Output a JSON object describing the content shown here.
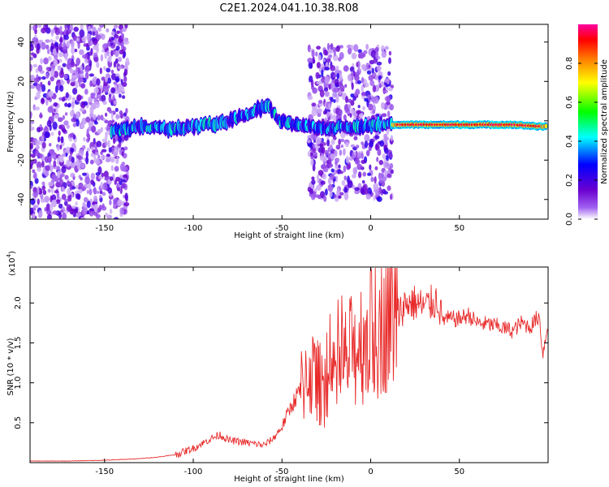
{
  "title": "C2E1.2024.041.10.38.R08",
  "colorbar": {
    "label": "Normalized spectral amplitude",
    "ticks": [
      "0.0",
      "0.2",
      "0.4",
      "0.6",
      "0.8"
    ],
    "range": [
      0,
      1
    ],
    "colors": [
      "#ffffff",
      "#6a00d0",
      "#0000ff",
      "#00ffff",
      "#00ff00",
      "#ffff00",
      "#ff7f00",
      "#ff0000",
      "#ff00a0"
    ]
  },
  "chart_data": [
    {
      "type": "heatmap",
      "xlabel": "Height of straight line (km)",
      "ylabel": "Frequency (Hz)",
      "xlim": [
        -192,
        100
      ],
      "ylim": [
        -50,
        49
      ],
      "xticks": [
        -150,
        -100,
        -50,
        0,
        50
      ],
      "yticks": [
        -40,
        -20,
        0,
        20,
        40
      ],
      "grid": false,
      "ridge": {
        "x": [
          -145,
          -130,
          -115,
          -100,
          -85,
          -70,
          -58,
          -52,
          -45,
          -35,
          -25,
          -15,
          -5,
          5,
          12,
          20,
          40,
          60,
          80,
          98
        ],
        "y": [
          -5,
          -3,
          -4,
          -3,
          -1,
          3,
          8,
          0,
          -1,
          -3,
          -4,
          -3,
          -3,
          -2,
          -2,
          -2,
          -2,
          -2,
          -2,
          -3
        ]
      },
      "noise_regions": [
        {
          "x": [
            -192,
            -137
          ],
          "y": [
            -50,
            49
          ]
        },
        {
          "x": [
            -35,
            12
          ],
          "y": [
            -40,
            38
          ]
        }
      ]
    },
    {
      "type": "line",
      "xlabel": "Height of straight line (km)",
      "ylabel": "SNR (10 * v/v)",
      "yscale_note": "(x10",
      "yscale_exp": "4",
      "xlim": [
        -192,
        100
      ],
      "ylim": [
        0,
        2.45
      ],
      "xticks": [
        -150,
        -100,
        -50,
        0,
        50
      ],
      "yticks": [
        0.5,
        1.0,
        1.5,
        2.0
      ],
      "grid": false,
      "color": "#e82a2a",
      "series": [
        {
          "x": [
            -192,
            -170,
            -150,
            -130,
            -120,
            -110,
            -100,
            -90,
            -85,
            -80,
            -70,
            -60,
            -55,
            -50,
            -45,
            -40,
            -35,
            -30,
            -25,
            -20,
            -15,
            -10,
            -5,
            0,
            5,
            10,
            15,
            20,
            25,
            30,
            35,
            38,
            40,
            50,
            55,
            60,
            70,
            80,
            85,
            90,
            95,
            97,
            100
          ],
          "y": [
            0.02,
            0.02,
            0.03,
            0.05,
            0.07,
            0.1,
            0.18,
            0.3,
            0.35,
            0.28,
            0.25,
            0.22,
            0.3,
            0.45,
            0.7,
            0.9,
            1.2,
            1.0,
            0.95,
            1.0,
            1.25,
            1.4,
            1.55,
            1.6,
            1.7,
            1.95,
            1.85,
            2.0,
            2.0,
            1.95,
            2.0,
            2.05,
            1.8,
            1.8,
            1.85,
            1.75,
            1.72,
            1.65,
            1.75,
            1.7,
            1.85,
            1.35,
            1.75
          ]
        }
      ]
    }
  ]
}
